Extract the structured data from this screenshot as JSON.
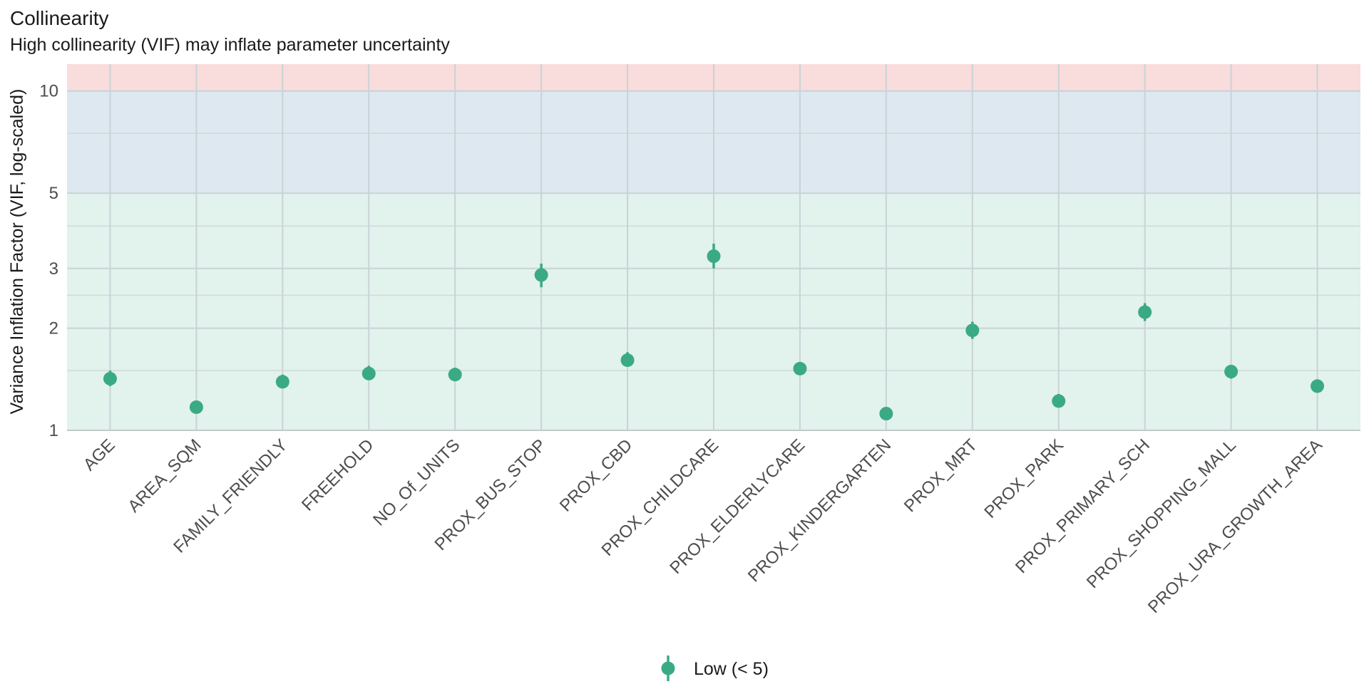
{
  "title": "Collinearity",
  "subtitle": "High collinearity (VIF) may inflate parameter uncertainty",
  "chart_data": {
    "type": "scatter",
    "scale": "log",
    "ylabel": "Variance Inflation Factor (VIF, log-scaled)",
    "ylim": [
      1,
      12
    ],
    "yticks": [
      1,
      2,
      3,
      5,
      10
    ],
    "minor_gridlines": [
      1.5,
      2.5,
      4,
      7.5
    ],
    "bands": [
      {
        "name": "low",
        "from": 1,
        "to": 5,
        "color": "#e2f2ec"
      },
      {
        "name": "moderate",
        "from": 5,
        "to": 10,
        "color": "#dde8f0"
      },
      {
        "name": "high",
        "from": 10,
        "to": 12,
        "color": "#f9dcdc"
      }
    ],
    "categories": [
      "AGE",
      "AREA_SQM",
      "FAMILY_FRIENDLY",
      "FREEHOLD",
      "NO_Of_UNITS",
      "PROX_BUS_STOP",
      "PROX_CBD",
      "PROX_CHILDCARE",
      "PROX_ELDERLYCARE",
      "PROX_KINDERGARTEN",
      "PROX_MRT",
      "PROX_PARK",
      "PROX_PRIMARY_SCH",
      "PROX_SHOPPING_MALL",
      "PROX_URA_GROWTH_AREA"
    ],
    "values": [
      1.42,
      1.17,
      1.39,
      1.47,
      1.46,
      2.87,
      1.61,
      3.26,
      1.52,
      1.12,
      1.97,
      1.22,
      2.23,
      1.49,
      1.35
    ],
    "ci_low": [
      1.35,
      1.13,
      1.33,
      1.41,
      1.4,
      2.64,
      1.54,
      3.0,
      1.46,
      1.08,
      1.86,
      1.17,
      2.1,
      1.42,
      1.3
    ],
    "ci_high": [
      1.5,
      1.22,
      1.46,
      1.55,
      1.53,
      3.1,
      1.7,
      3.55,
      1.59,
      1.17,
      2.09,
      1.28,
      2.37,
      1.56,
      1.41
    ],
    "point_color": "#3aaa85",
    "legend": [
      {
        "label": "Low (< 5)",
        "color": "#3aaa85"
      }
    ]
  }
}
